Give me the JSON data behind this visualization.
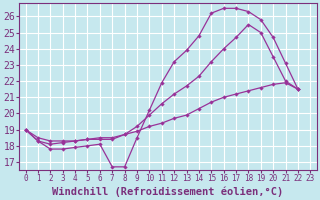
{
  "xlabel": "Windchill (Refroidissement éolien,°C)",
  "xlim": [
    -0.5,
    23.5
  ],
  "ylim": [
    16.5,
    26.8
  ],
  "xticks": [
    0,
    1,
    2,
    3,
    4,
    5,
    6,
    7,
    8,
    9,
    10,
    11,
    12,
    13,
    14,
    15,
    16,
    17,
    18,
    19,
    20,
    21,
    22,
    23
  ],
  "yticks": [
    17,
    18,
    19,
    20,
    21,
    22,
    23,
    24,
    25,
    26
  ],
  "background_color": "#c6e8ee",
  "grid_color": "#b0d8e0",
  "line_color": "#993399",
  "line1_x": [
    0,
    1,
    2,
    3,
    4,
    5,
    6,
    7,
    8,
    9,
    10,
    11,
    12,
    13,
    14,
    15,
    16,
    17,
    18,
    19,
    20,
    21,
    22
  ],
  "line1_y": [
    19.0,
    18.3,
    17.8,
    17.8,
    17.9,
    18.0,
    18.1,
    16.7,
    16.7,
    18.5,
    20.2,
    21.9,
    23.2,
    23.9,
    24.8,
    26.2,
    26.5,
    26.5,
    26.3,
    25.8,
    24.7,
    23.1,
    21.5
  ],
  "line2_x": [
    0,
    1,
    2,
    3,
    4,
    5,
    6,
    7,
    8,
    9,
    10,
    11,
    12,
    13,
    14,
    15,
    16,
    17,
    18,
    19,
    20,
    21,
    22
  ],
  "line2_y": [
    19.0,
    18.5,
    18.3,
    18.3,
    18.3,
    18.4,
    18.4,
    18.4,
    18.7,
    19.2,
    19.9,
    20.6,
    21.2,
    21.7,
    22.3,
    23.2,
    24.0,
    24.7,
    25.5,
    25.0,
    23.5,
    22.0,
    21.5
  ],
  "line3_x": [
    0,
    1,
    2,
    3,
    4,
    5,
    6,
    7,
    8,
    9,
    10,
    11,
    12,
    13,
    14,
    15,
    16,
    17,
    18,
    19,
    20,
    21,
    22
  ],
  "line3_y": [
    19.0,
    18.3,
    18.1,
    18.2,
    18.3,
    18.4,
    18.5,
    18.5,
    18.7,
    18.9,
    19.2,
    19.4,
    19.7,
    19.9,
    20.3,
    20.7,
    21.0,
    21.2,
    21.4,
    21.6,
    21.8,
    21.9,
    21.5
  ],
  "font_color": "#7b2f7b",
  "font_size": 7.0,
  "label_font_size": 7.5
}
